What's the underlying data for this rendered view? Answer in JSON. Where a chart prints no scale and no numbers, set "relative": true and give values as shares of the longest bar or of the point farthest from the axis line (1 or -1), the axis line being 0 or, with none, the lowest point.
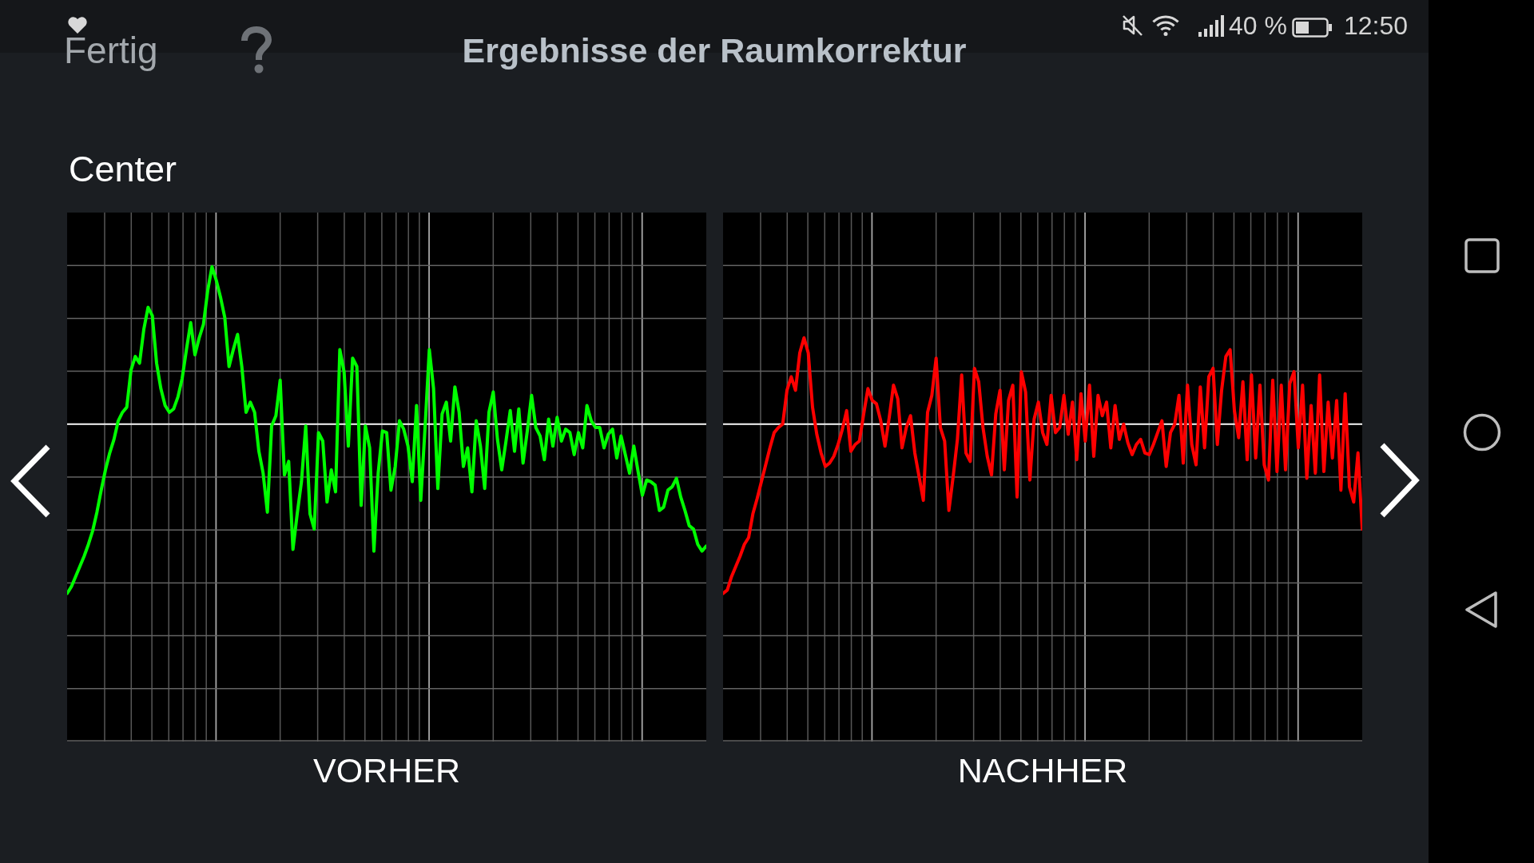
{
  "chart_data": [
    {
      "type": "line",
      "title": "Ergebnisse der Raumkorrektur",
      "subtitle": "Center",
      "xlabel": "VORHER",
      "relative": true,
      "grid": true,
      "annotations": [
        "Fertig",
        "40 %",
        "12:50"
      ],
      "categories": [
        null,
        null,
        null,
        null,
        null,
        null,
        null,
        null,
        null,
        null,
        null,
        null,
        null,
        null,
        null,
        null,
        null,
        null,
        null,
        null,
        null,
        null,
        null,
        null,
        null,
        null,
        null,
        null,
        null,
        null,
        null,
        null,
        null,
        null,
        null,
        null,
        null,
        null,
        null,
        null,
        null,
        null,
        null,
        null,
        null,
        null,
        null,
        null,
        null,
        null,
        null,
        null,
        null,
        null,
        null,
        null,
        null,
        null,
        null,
        null,
        null,
        null,
        null,
        null,
        null,
        null,
        null,
        null,
        null,
        null,
        null,
        null,
        null,
        null,
        null,
        null,
        null,
        null,
        null,
        null,
        null,
        null,
        null,
        null,
        null,
        null,
        null,
        null,
        null,
        null,
        null,
        null,
        null,
        null,
        null,
        null,
        null,
        null,
        null,
        null,
        null,
        null,
        null,
        null,
        null,
        null,
        null,
        null,
        null,
        null,
        null,
        null,
        null,
        null,
        null,
        null,
        null,
        null,
        null,
        null,
        null,
        null,
        null,
        null,
        null,
        null,
        null,
        null,
        null,
        null,
        null,
        null,
        null,
        null,
        null,
        null,
        null,
        null,
        null,
        null,
        null,
        null,
        null,
        null,
        null,
        null,
        null,
        null,
        null,
        null,
        null
      ],
      "series": [
        {
          "color": "#00ff00",
          "values": [
            -1,
            -0.96,
            -0.9,
            -0.84,
            -0.78,
            -0.71,
            -0.63,
            -0.52,
            -0.39,
            -0.27,
            -0.17,
            -0.09,
            0.02,
            0.07,
            0.1,
            0.32,
            0.4,
            0.36,
            0.56,
            0.69,
            0.64,
            0.36,
            0.21,
            0.11,
            0.07,
            0.09,
            0.16,
            0.27,
            0.44,
            0.6,
            0.41,
            0.51,
            0.59,
            0.79,
            0.93,
            0.85,
            0.75,
            0.63,
            0.34,
            0.44,
            0.53,
            0.34,
            0.07,
            0.13,
            0.07,
            -0.16,
            -0.29,
            -0.52,
            -0.01,
            0.05,
            0.26,
            -0.3,
            -0.22,
            -0.74,
            -0.53,
            -0.34,
            -0.01,
            -0.53,
            -0.62,
            -0.05,
            -0.1,
            -0.46,
            -0.27,
            -0.4,
            0.44,
            0.31,
            -0.13,
            0.39,
            0.34,
            -0.48,
            -0.01,
            -0.14,
            -0.75,
            -0.29,
            -0.04,
            -0.05,
            -0.39,
            -0.25,
            0.02,
            -0.03,
            -0.13,
            -0.34,
            0.11,
            -0.45,
            -0.02,
            0.44,
            0.21,
            -0.38,
            0.06,
            0.13,
            -0.1,
            0.22,
            0.07,
            -0.25,
            -0.14,
            -0.4,
            0.02,
            -0.13,
            -0.38,
            0.07,
            0.19,
            -0.09,
            -0.27,
            -0.1,
            0.08,
            -0.16,
            0.09,
            -0.23,
            -0.04,
            0.17,
            -0.02,
            -0.07,
            -0.21,
            0.03,
            -0.13,
            0.04,
            -0.1,
            -0.03,
            -0.05,
            -0.18,
            -0.05,
            -0.14,
            0.11,
            0.02,
            -0.02,
            -0.02,
            -0.14,
            -0.06,
            -0.03,
            -0.2,
            -0.07,
            -0.18,
            -0.29,
            -0.13,
            -0.28,
            -0.42,
            -0.33,
            -0.34,
            -0.36,
            -0.51,
            -0.49,
            -0.39,
            -0.37,
            -0.32,
            -0.43,
            -0.51,
            -0.6,
            -0.62,
            -0.71,
            -0.75,
            -0.72
          ]
        }
      ]
    },
    {
      "type": "line",
      "xlabel": "NACHHER",
      "relative": true,
      "grid": true,
      "categories": [
        null,
        null,
        null,
        null,
        null,
        null,
        null,
        null,
        null,
        null,
        null,
        null,
        null,
        null,
        null,
        null,
        null,
        null,
        null,
        null,
        null,
        null,
        null,
        null,
        null,
        null,
        null,
        null,
        null,
        null,
        null,
        null,
        null,
        null,
        null,
        null,
        null,
        null,
        null,
        null,
        null,
        null,
        null,
        null,
        null,
        null,
        null,
        null,
        null,
        null,
        null,
        null,
        null,
        null,
        null,
        null,
        null,
        null,
        null,
        null,
        null,
        null,
        null,
        null,
        null,
        null,
        null,
        null,
        null,
        null,
        null,
        null,
        null,
        null,
        null,
        null,
        null,
        null,
        null,
        null,
        null,
        null,
        null,
        null,
        null,
        null,
        null,
        null,
        null,
        null,
        null,
        null,
        null,
        null,
        null,
        null,
        null,
        null,
        null,
        null,
        null,
        null,
        null,
        null,
        null,
        null,
        null,
        null,
        null,
        null,
        null,
        null,
        null,
        null,
        null,
        null,
        null,
        null,
        null,
        null,
        null,
        null,
        null,
        null,
        null,
        null,
        null,
        null,
        null,
        null,
        null,
        null,
        null,
        null,
        null,
        null,
        null,
        null,
        null,
        null,
        null,
        null,
        null,
        null,
        null,
        null,
        null,
        null,
        null,
        null,
        null
      ],
      "series": [
        {
          "color": "#ff0000",
          "values": [
            -1,
            -0.98,
            -0.9,
            -0.84,
            -0.78,
            -0.71,
            -0.67,
            -0.53,
            -0.44,
            -0.34,
            -0.24,
            -0.14,
            -0.05,
            -0.02,
            0,
            0.2,
            0.28,
            0.2,
            0.42,
            0.51,
            0.42,
            0.1,
            -0.06,
            -0.17,
            -0.25,
            -0.23,
            -0.19,
            -0.12,
            -0.03,
            0.08,
            -0.16,
            -0.12,
            -0.1,
            0.06,
            0.21,
            0.14,
            0.12,
            0.02,
            -0.13,
            0.04,
            0.23,
            0.15,
            -0.14,
            -0.02,
            0.05,
            -0.17,
            -0.31,
            -0.45,
            0.07,
            0.17,
            0.39,
            -0.02,
            -0.1,
            -0.51,
            -0.31,
            -0.09,
            0.29,
            -0.17,
            -0.22,
            0.33,
            0.25,
            -0.02,
            -0.19,
            -0.3,
            0.06,
            0.2,
            -0.27,
            0.14,
            0.23,
            -0.43,
            0.31,
            0.19,
            -0.33,
            0.03,
            0.13,
            -0.05,
            -0.12,
            0.17,
            -0.05,
            -0.02,
            0.17,
            -0.06,
            0.13,
            -0.21,
            0.18,
            -0.1,
            0.23,
            -0.19,
            0.17,
            0.05,
            0.13,
            -0.14,
            0.11,
            -0.09,
            0,
            -0.11,
            -0.18,
            -0.12,
            -0.09,
            -0.17,
            -0.18,
            -0.12,
            -0.05,
            0.02,
            -0.25,
            -0.05,
            0,
            0.17,
            -0.23,
            0.23,
            -0.12,
            -0.24,
            0.22,
            -0.14,
            0.28,
            0.33,
            -0.12,
            0.2,
            0.4,
            0.44,
            0.08,
            -0.08,
            0.25,
            -0.21,
            0.29,
            -0.2,
            0.23,
            -0.24,
            -0.33,
            0.26,
            -0.28,
            0.23,
            -0.27,
            0.24,
            0.31,
            -0.14,
            0.23,
            -0.32,
            0.11,
            -0.29,
            0.29,
            -0.28,
            0.13,
            -0.2,
            0.14,
            -0.39,
            0.18,
            -0.37,
            -0.46,
            -0.17,
            -0.62
          ]
        }
      ]
    }
  ]
}
